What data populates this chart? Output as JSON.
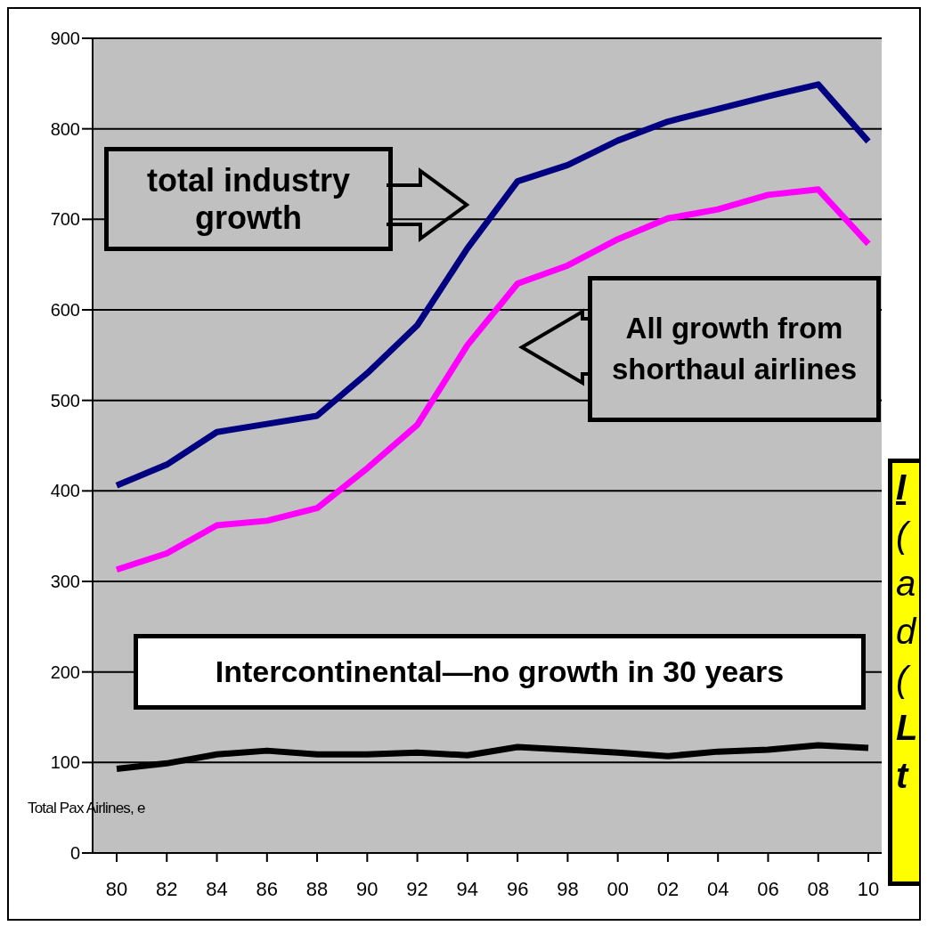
{
  "chart_data": {
    "type": "line",
    "ylabel": "Total Pax Airlines, e",
    "categories": [
      "80",
      "82",
      "84",
      "86",
      "88",
      "90",
      "92",
      "94",
      "96",
      "98",
      "00",
      "02",
      "04",
      "06",
      "08",
      "10"
    ],
    "series": [
      {
        "color": "#000080",
        "values": [
          406,
          429,
          465,
          474,
          483,
          530,
          583,
          668,
          742,
          760,
          787,
          808,
          822,
          836,
          849,
          786
        ]
      },
      {
        "color": "#ff00ff",
        "values": [
          313,
          331,
          362,
          367,
          381,
          425,
          473,
          561,
          629,
          649,
          678,
          701,
          711,
          727,
          733,
          673
        ]
      },
      {
        "color": "#000000",
        "values": [
          93,
          99,
          109,
          113,
          109,
          109,
          111,
          108,
          117,
          114,
          111,
          107,
          112,
          114,
          119,
          116
        ]
      }
    ],
    "ylim": [
      0,
      900
    ],
    "yticks": [
      0,
      100,
      200,
      300,
      400,
      500,
      600,
      700,
      800,
      900
    ],
    "grid": "y",
    "legend": false,
    "annotations": [
      "total industry growth",
      "All growth from shorthaul airlines",
      "Intercontinental—no growth in 30 years",
      "I",
      "(",
      "a",
      "d",
      "(",
      "L",
      "t"
    ]
  }
}
